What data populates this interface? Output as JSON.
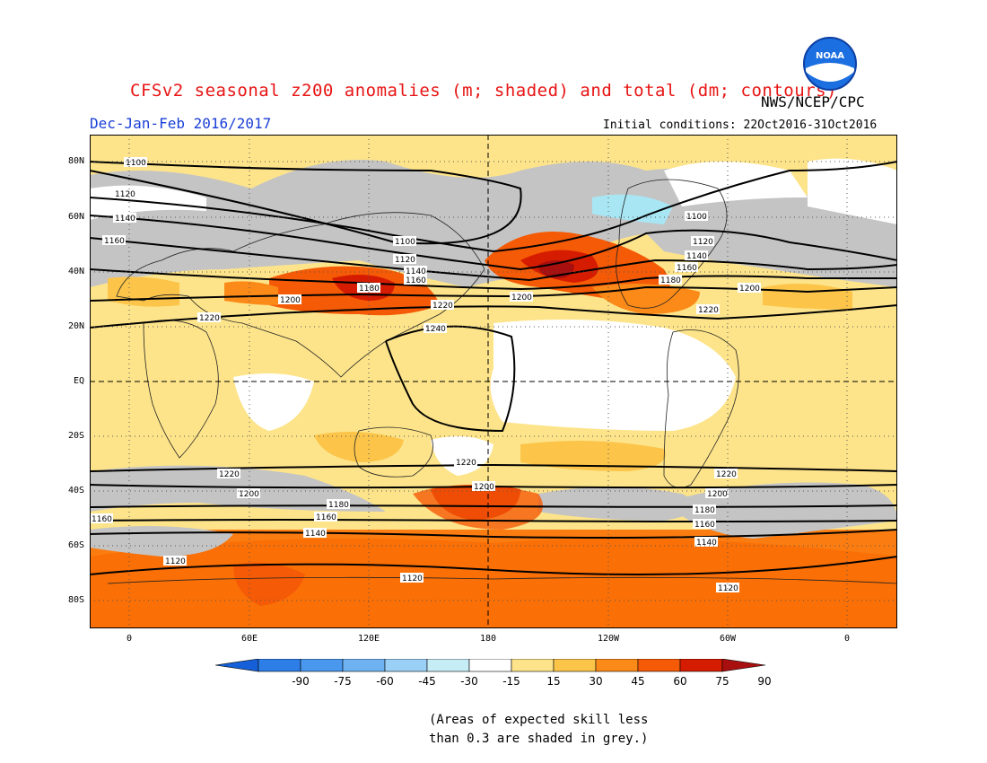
{
  "title": "CFSv2 seasonal z200 anomalies (m; shaded) and total (dm; contours)",
  "agency": "NWS/NCEP/CPC",
  "season": "Dec-Jan-Feb 2016/2017",
  "initial_conditions": "Initial conditions: 22Oct2016-31Oct2016",
  "logo_text": "NOAA",
  "lat_labels": [
    "80N",
    "60N",
    "40N",
    "20N",
    "EQ",
    "20S",
    "40S",
    "60S",
    "80S"
  ],
  "lon_labels": [
    "0",
    "60E",
    "120E",
    "180",
    "120W",
    "60W",
    "0"
  ],
  "contour_labels": [
    "1100",
    "1120",
    "1140",
    "1160",
    "1180",
    "1200",
    "1220",
    "1240"
  ],
  "colorbar": {
    "ticks": [
      "-90",
      "-75",
      "-60",
      "-45",
      "-30",
      "-15",
      "15",
      "30",
      "45",
      "60",
      "75",
      "90"
    ],
    "colors": [
      "#1560d8",
      "#2d7ee6",
      "#4a98ee",
      "#6fb2f2",
      "#9bd0f6",
      "#c6ecf6",
      "#ffffff",
      "#fde48a",
      "#fcc54a",
      "#fb8a18",
      "#f55a06",
      "#d51c00",
      "#a80f0f"
    ]
  },
  "note_line1": "(Areas of expected skill less",
  "note_line2": "than 0.3 are shaded in grey.)",
  "colors": {
    "title": "#e81414",
    "season": "#1a3fd6",
    "low_skill_grey": "#c4c4c4"
  }
}
